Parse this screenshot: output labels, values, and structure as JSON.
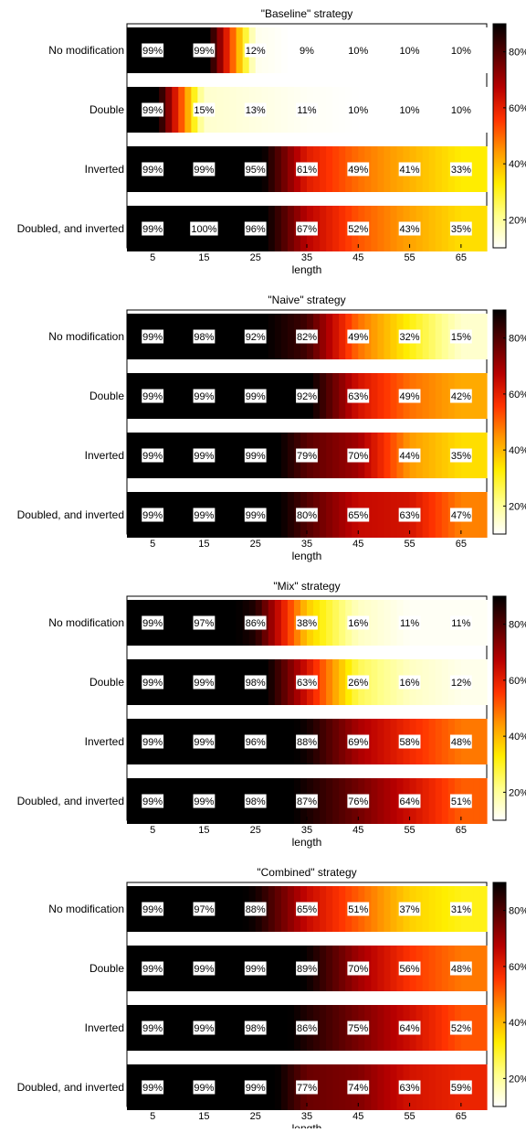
{
  "chart_data": [
    {
      "type": "heatmap",
      "title": "\"Baseline\" strategy",
      "xlabel": "length",
      "x_ticks": [
        "5",
        "15",
        "25",
        "35",
        "45",
        "55",
        "65"
      ],
      "rows": [
        "No modification",
        "Double",
        "Inverted",
        "Doubled, and inverted"
      ],
      "values": [
        [
          99,
          99,
          12,
          9,
          10,
          10,
          10
        ],
        [
          99,
          15,
          13,
          11,
          10,
          10,
          10
        ],
        [
          99,
          99,
          95,
          61,
          49,
          41,
          33
        ],
        [
          99,
          100,
          96,
          67,
          52,
          43,
          35
        ]
      ],
      "colorbar": {
        "ticks": [
          "20%",
          "40%",
          "60%",
          "80%"
        ],
        "range": [
          10,
          90
        ]
      }
    },
    {
      "type": "heatmap",
      "title": "\"Naive\" strategy",
      "xlabel": "length",
      "x_ticks": [
        "5",
        "15",
        "25",
        "35",
        "45",
        "55",
        "65"
      ],
      "rows": [
        "No modification",
        "Double",
        "Inverted",
        "Doubled, and inverted"
      ],
      "values": [
        [
          99,
          98,
          92,
          82,
          49,
          32,
          15
        ],
        [
          99,
          99,
          99,
          92,
          63,
          49,
          42
        ],
        [
          99,
          99,
          99,
          79,
          70,
          44,
          35
        ],
        [
          99,
          99,
          99,
          80,
          65,
          63,
          47
        ]
      ],
      "colorbar": {
        "ticks": [
          "20%",
          "40%",
          "60%",
          "80%"
        ],
        "range": [
          10,
          90
        ]
      }
    },
    {
      "type": "heatmap",
      "title": "\"Mix\" strategy",
      "xlabel": "length",
      "x_ticks": [
        "5",
        "15",
        "25",
        "35",
        "45",
        "55",
        "65"
      ],
      "rows": [
        "No modification",
        "Double",
        "Inverted",
        "Doubled, and inverted"
      ],
      "values": [
        [
          99,
          97,
          86,
          38,
          16,
          11,
          11
        ],
        [
          99,
          99,
          98,
          63,
          26,
          16,
          12
        ],
        [
          99,
          99,
          96,
          88,
          69,
          58,
          48
        ],
        [
          99,
          99,
          98,
          87,
          76,
          64,
          51
        ]
      ],
      "colorbar": {
        "ticks": [
          "20%",
          "40%",
          "60%",
          "80%"
        ],
        "range": [
          10,
          90
        ]
      }
    },
    {
      "type": "heatmap",
      "title": "\"Combined\" strategy",
      "xlabel": "length",
      "x_ticks": [
        "5",
        "15",
        "25",
        "35",
        "45",
        "55",
        "65"
      ],
      "rows": [
        "No modification",
        "Double",
        "Inverted",
        "Doubled, and inverted"
      ],
      "values": [
        [
          99,
          97,
          88,
          65,
          51,
          37,
          31
        ],
        [
          99,
          99,
          99,
          89,
          70,
          56,
          48
        ],
        [
          99,
          99,
          98,
          86,
          75,
          64,
          52
        ],
        [
          99,
          99,
          99,
          77,
          74,
          63,
          59
        ]
      ],
      "colorbar": {
        "ticks": [
          "20%",
          "40%",
          "60%",
          "80%"
        ],
        "range": [
          10,
          90
        ]
      }
    }
  ],
  "colors": {
    "scale": [
      "#ffffff",
      "#ffff8c",
      "#ffee00",
      "#ff9900",
      "#ff3300",
      "#b80000",
      "#5c0000",
      "#000000"
    ]
  }
}
